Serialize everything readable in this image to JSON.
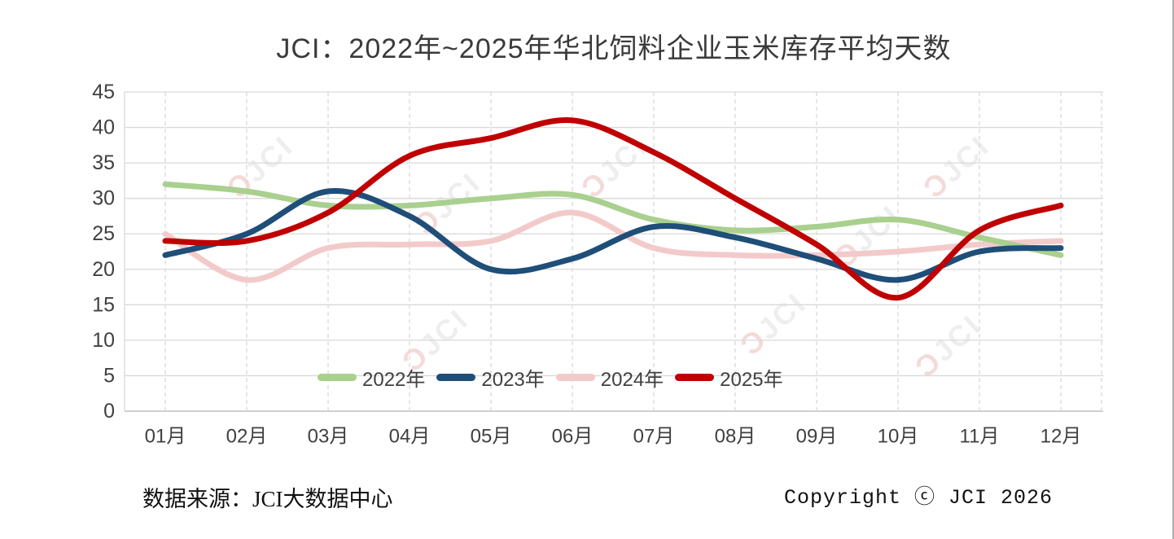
{
  "title": "JCI：2022年~2025年华北饲料企业玉米库存平均天数",
  "footer": {
    "source": "数据来源：JCI大数据中心",
    "copyright": "Copyright ⓒ JCI 2026"
  },
  "watermark": {
    "symbol": "Ɔ",
    "label": "JCI"
  },
  "colors": {
    "background": "#FFFFFF",
    "title_text": "#3A3A3A",
    "axis_text": "#404040",
    "gridline": "#D9D9D9",
    "axis_line": "#BFBFBF",
    "series_2022": "#A9D08E",
    "series_2023": "#1F4E79",
    "series_2024": "#F3CACA",
    "series_2025": "#C00000",
    "watermark_mark": "#C00000",
    "watermark_text": "#8F8F8F"
  },
  "chart_data": {
    "type": "line",
    "title": "JCI：2022年~2025年华北饲料企业玉米库存平均天数",
    "xlabel": "",
    "ylabel": "",
    "categories": [
      "01月",
      "02月",
      "03月",
      "04月",
      "05月",
      "06月",
      "07月",
      "08月",
      "09月",
      "10月",
      "11月",
      "12月"
    ],
    "series": [
      {
        "name": "2022年",
        "color": "#A9D08E",
        "values": [
          32,
          31,
          29,
          29,
          30,
          30.5,
          27,
          25.5,
          26,
          27,
          24.5,
          22
        ]
      },
      {
        "name": "2023年",
        "color": "#1F4E79",
        "values": [
          22,
          25,
          31,
          27.5,
          20,
          21.5,
          26,
          24.5,
          21.5,
          18.5,
          22.5,
          23
        ]
      },
      {
        "name": "2024年",
        "color": "#F3CACA",
        "values": [
          25,
          18.5,
          23,
          23.5,
          24,
          28,
          23,
          22,
          22,
          22.5,
          23.5,
          24
        ]
      },
      {
        "name": "2025年",
        "color": "#C00000",
        "values": [
          24,
          24,
          28,
          36,
          38.5,
          41,
          36.5,
          30,
          23.5,
          16,
          25.5,
          29
        ]
      }
    ],
    "ylim": [
      0,
      45
    ],
    "yticks": [
      0,
      5,
      10,
      15,
      20,
      25,
      30,
      35,
      40,
      45
    ],
    "grid": {
      "horizontal": "solid",
      "vertical": "dashed"
    },
    "legend": {
      "position": "bottom-inside",
      "labels": [
        "2022年",
        "2023年",
        "2024年",
        "2025年"
      ]
    },
    "line_style": {
      "smooth": true,
      "width": 7,
      "cap": "round"
    },
    "draw_order": [
      2,
      0,
      1,
      3
    ]
  }
}
